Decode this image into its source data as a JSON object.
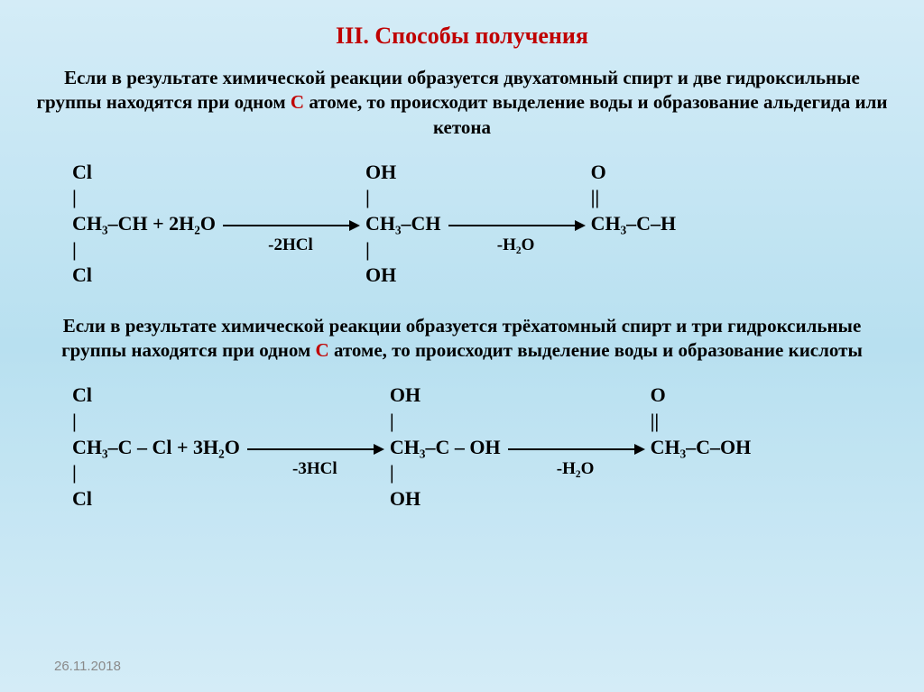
{
  "title": "III. Способы получения",
  "intro1": {
    "part1": "Если в результате химической  реакции образуется двухатомный спирт и две гидроксильные группы находятся при одном ",
    "red": "С",
    "part2": " атоме, то происходит выделение воды и образование альдегида или кетона"
  },
  "reaction1": {
    "r1_top": "            Cl                                               OH                                        O",
    "r1_bond": "             |                                                  |                                           ||",
    "r1_main_a": "CH₃–CH    +  2H₂O",
    "r1_main_b": "CH₃–CH",
    "r1_main_c": "CH₃–C–H",
    "r1_bond2": "             |                          -2HCl                 |               -H₂O",
    "r1_bot": "            Cl                                               OH",
    "annot1": "-2HCl",
    "annot2": "-H₂O"
  },
  "intro2": {
    "part1": "Если в результате химической  реакции образуется трёхатомный спирт и три гидроксильные группы находятся при одном ",
    "red": "С",
    "part2": " атоме, то происходит выделение воды и образование кислоты"
  },
  "reaction2": {
    "r1_top": "             Cl                                                   OH                                            O",
    "r1_bond": "              |                                                      |                                               ||",
    "r2_main_a": "CH₃–C – Cl    +  3H₂O",
    "r2_main_b": "CH₃–C – OH",
    "r2_main_c": "CH₃–C–OH",
    "r1_bond2": "              |                            -3HCl                    |                   -H₂O",
    "r1_bot": "             Cl                                                   OH",
    "annot1": "-3HCl",
    "annot2": "-H₂O"
  },
  "footer_date": "26.11.2018"
}
